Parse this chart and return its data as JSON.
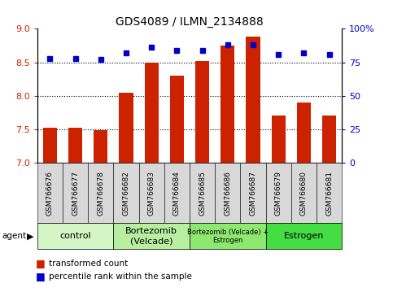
{
  "title": "GDS4089 / ILMN_2134888",
  "samples": [
    "GSM766676",
    "GSM766677",
    "GSM766678",
    "GSM766682",
    "GSM766683",
    "GSM766684",
    "GSM766685",
    "GSM766686",
    "GSM766687",
    "GSM766679",
    "GSM766680",
    "GSM766681"
  ],
  "bar_values": [
    7.52,
    7.52,
    7.49,
    8.05,
    8.5,
    8.3,
    8.52,
    8.75,
    8.88,
    7.7,
    7.9,
    7.7
  ],
  "percentile_values": [
    78,
    78,
    77,
    82,
    86,
    84,
    84,
    88,
    88,
    81,
    82,
    81
  ],
  "groups": [
    {
      "label": "control",
      "start": 0,
      "end": 3,
      "color": "#d4f5c4"
    },
    {
      "label": "Bortezomib\n(Velcade)",
      "start": 3,
      "end": 6,
      "color": "#b8eea0"
    },
    {
      "label": "Bortezomib (Velcade) +\nEstrogen",
      "start": 6,
      "end": 9,
      "color": "#8de870",
      "fontsize": 6
    },
    {
      "label": "Estrogen",
      "start": 9,
      "end": 12,
      "color": "#44dd44"
    }
  ],
  "bar_color": "#cc2200",
  "dot_color": "#0000cc",
  "ylim_left": [
    7.0,
    9.0
  ],
  "ylim_right": [
    0,
    100
  ],
  "yticks_left": [
    7.0,
    7.5,
    8.0,
    8.5,
    9.0
  ],
  "yticks_right": [
    0,
    25,
    50,
    75,
    100
  ],
  "ytick_labels_right": [
    "0",
    "25",
    "50",
    "75",
    "100%"
  ],
  "grid_values": [
    7.5,
    8.0,
    8.5
  ],
  "bar_width": 0.55,
  "dot_size": 5,
  "legend_items": [
    {
      "label": "transformed count",
      "color": "#cc2200"
    },
    {
      "label": "percentile rank within the sample",
      "color": "#0000cc"
    }
  ],
  "title_fontsize": 10,
  "tick_fontsize": 8,
  "sample_fontsize": 6.5,
  "group_fontsize": 8
}
